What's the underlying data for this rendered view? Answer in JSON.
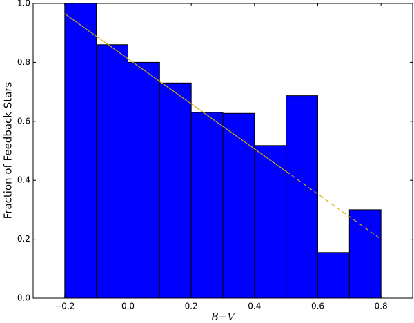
{
  "chart_data": {
    "type": "histogram",
    "xlabel": "B−V",
    "ylabel": "Fraction of Feedback Stars",
    "bins": [
      -0.2,
      -0.1,
      0.0,
      0.1,
      0.2,
      0.3,
      0.4,
      0.5,
      0.6,
      0.7,
      0.8
    ],
    "values": [
      1.0,
      0.86,
      0.8,
      0.73,
      0.63,
      0.627,
      0.518,
      0.687,
      0.155,
      0.3
    ],
    "color": "#0000ff",
    "fit": [
      {
        "x": [
          -0.2,
          0.5
        ],
        "values": [
          0.965,
          0.43
        ],
        "style": "solid",
        "color": "#d4b000"
      },
      {
        "x": [
          0.5,
          0.8
        ],
        "values": [
          0.43,
          0.2
        ],
        "style": "dashed",
        "color": "#d4b000"
      }
    ],
    "xlim": [
      -0.3,
      0.9
    ],
    "ylim": [
      0,
      1
    ],
    "xticks": [
      {
        "value": -0.2,
        "label": "−0.2"
      },
      {
        "value": 0,
        "label": "0.0"
      },
      0.2,
      0.4,
      0.6,
      0.8
    ],
    "yticks": [
      {
        "value": 0,
        "label": "0.0"
      },
      0.2,
      0.4,
      0.6,
      0.8,
      {
        "value": 1,
        "label": "1.0"
      }
    ],
    "grid": false
  }
}
